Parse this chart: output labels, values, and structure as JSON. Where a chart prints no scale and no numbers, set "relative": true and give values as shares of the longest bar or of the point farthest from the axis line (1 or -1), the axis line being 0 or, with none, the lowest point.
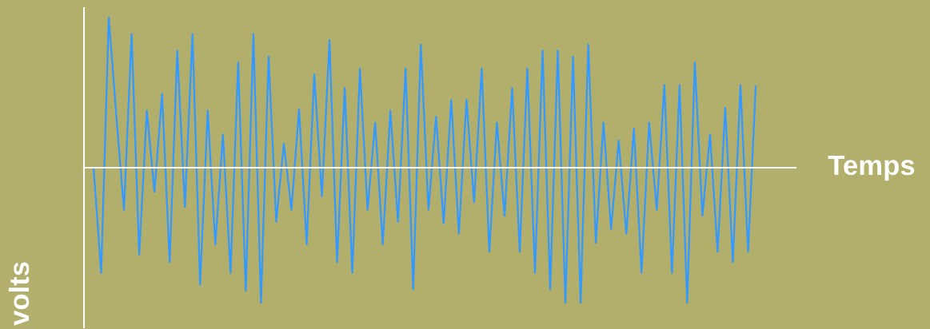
{
  "chart_data": {
    "type": "line",
    "xlabel": "Temps",
    "ylabel": "volts",
    "relative": true,
    "categories": [
      null,
      null,
      null,
      null,
      null,
      null,
      null,
      null,
      null,
      null,
      null,
      null,
      null,
      null,
      null,
      null,
      null,
      null,
      null,
      null,
      null,
      null,
      null,
      null,
      null,
      null,
      null,
      null,
      null,
      null,
      null,
      null,
      null,
      null,
      null,
      null,
      null,
      null,
      null,
      null,
      null,
      null,
      null,
      null,
      null,
      null,
      null,
      null,
      null,
      null,
      null,
      null,
      null,
      null,
      null,
      null,
      null,
      null,
      null,
      null,
      null,
      null,
      null,
      null,
      null,
      null,
      null,
      null,
      null,
      null,
      null,
      null,
      null,
      null,
      null,
      null,
      null,
      null,
      null,
      null,
      null,
      null,
      null,
      null,
      null,
      null,
      null,
      null
    ],
    "series": [
      {
        "color": "#3399ff",
        "values": [
          0,
          -0.7,
          1,
          0.34,
          -0.28,
          0.89,
          -0.58,
          0.38,
          -0.16,
          0.49,
          -0.63,
          0.78,
          -0.26,
          0.89,
          -0.78,
          0.38,
          -0.51,
          0.22,
          -0.7,
          0.7,
          -0.82,
          0.89,
          -0.9,
          0.74,
          -0.36,
          0.16,
          -0.28,
          0.39,
          -0.51,
          0.62,
          -0.19,
          0.85,
          -0.63,
          0.53,
          -0.7,
          0.66,
          -0.28,
          0.3,
          -0.51,
          0.38,
          -0.36,
          0.66,
          -0.81,
          0.82,
          -0.28,
          0.34,
          -0.37,
          0.45,
          -0.44,
          0.45,
          -0.23,
          0.66,
          -0.56,
          0.3,
          -0.32,
          0.53,
          -0.56,
          0.66,
          -0.7,
          0.78,
          -0.81,
          0.78,
          -0.9,
          0.74,
          -0.9,
          0.82,
          -0.5,
          0.3,
          -0.41,
          0.18,
          -0.44,
          0.26,
          -0.7,
          0.3,
          -0.28,
          0.55,
          -0.7,
          0.55,
          -0.9,
          0.7,
          -0.32,
          0.22,
          -0.56,
          0.4,
          -0.63,
          0.55,
          -0.56,
          0.54
        ]
      }
    ],
    "marker": "none",
    "line_style": "solid"
  }
}
